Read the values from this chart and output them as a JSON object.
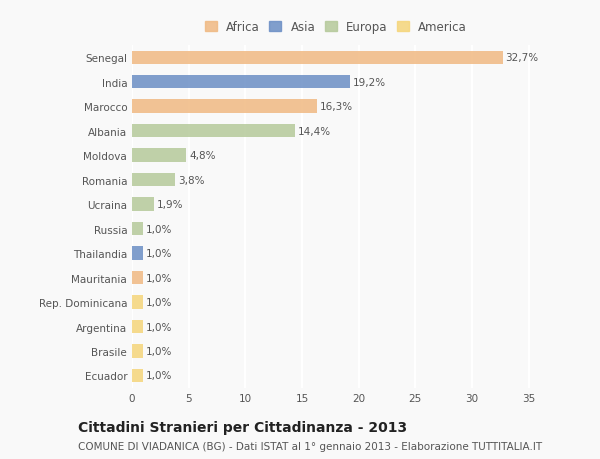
{
  "categories": [
    "Senegal",
    "India",
    "Marocco",
    "Albania",
    "Moldova",
    "Romania",
    "Ucraina",
    "Russia",
    "Thailandia",
    "Mauritania",
    "Rep. Dominicana",
    "Argentina",
    "Brasile",
    "Ecuador"
  ],
  "values": [
    32.7,
    19.2,
    16.3,
    14.4,
    4.8,
    3.8,
    1.9,
    1.0,
    1.0,
    1.0,
    1.0,
    1.0,
    1.0,
    1.0
  ],
  "labels": [
    "32,7%",
    "19,2%",
    "16,3%",
    "14,4%",
    "4,8%",
    "3,8%",
    "1,9%",
    "1,0%",
    "1,0%",
    "1,0%",
    "1,0%",
    "1,0%",
    "1,0%",
    "1,0%"
  ],
  "colors": [
    "#f0b982",
    "#6b8ec5",
    "#f0b982",
    "#b5c99a",
    "#b5c99a",
    "#b5c99a",
    "#b5c99a",
    "#b5c99a",
    "#6b8ec5",
    "#f0b982",
    "#f5d57a",
    "#f5d57a",
    "#f5d57a",
    "#f5d57a"
  ],
  "legend_labels": [
    "Africa",
    "Asia",
    "Europa",
    "America"
  ],
  "legend_colors": [
    "#f0b982",
    "#6b8ec5",
    "#b5c99a",
    "#f5d57a"
  ],
  "xlim": [
    0,
    36
  ],
  "xticks": [
    0,
    5,
    10,
    15,
    20,
    25,
    30,
    35
  ],
  "title": "Cittadini Stranieri per Cittadinanza - 2013",
  "subtitle": "COMUNE DI VIADANICA (BG) - Dati ISTAT al 1° gennaio 2013 - Elaborazione TUTTITALIA.IT",
  "bg_color": "#f9f9f9",
  "bar_height": 0.55,
  "label_fontsize": 7.5,
  "tick_fontsize": 7.5,
  "title_fontsize": 10,
  "subtitle_fontsize": 7.5
}
